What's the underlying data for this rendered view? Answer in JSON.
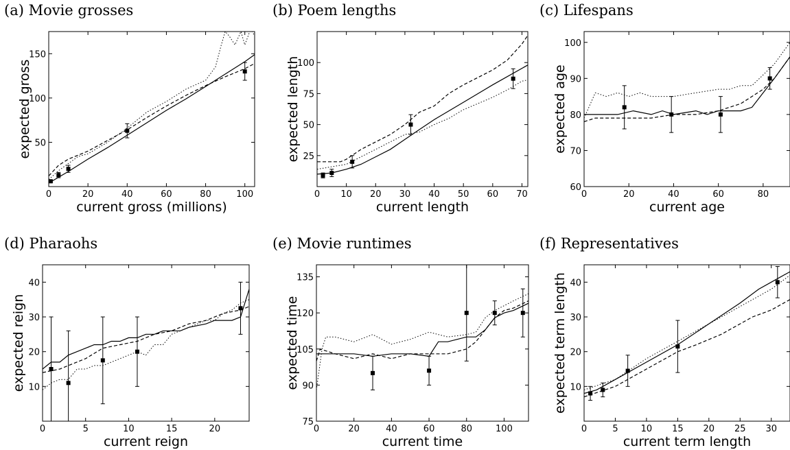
{
  "chart_data": [
    {
      "type": "line",
      "title": "(a) Movie grosses",
      "xlabel": "current gross (millions)",
      "ylabel": "expected gross",
      "xlim": [
        0,
        105
      ],
      "ylim": [
        0,
        175
      ],
      "xticks": [
        0,
        20,
        40,
        60,
        80,
        100
      ],
      "yticks": [
        50,
        100,
        150
      ],
      "series": [
        {
          "style": "solid",
          "x": [
            0,
            10,
            20,
            30,
            40,
            50,
            60,
            70,
            80,
            90,
            100,
            105
          ],
          "y": [
            4,
            17,
            31,
            44,
            58,
            72,
            86,
            99,
            113,
            127,
            141,
            149
          ]
        },
        {
          "style": "dashed",
          "x": [
            0,
            5,
            10,
            20,
            30,
            40,
            50,
            60,
            70,
            80,
            90,
            100,
            105
          ],
          "y": [
            12,
            24,
            31,
            40,
            52,
            64,
            78,
            91,
            103,
            114,
            124,
            133,
            139
          ]
        },
        {
          "style": "dotted",
          "x": [
            0,
            5,
            10,
            15,
            20,
            30,
            40,
            50,
            60,
            70,
            80,
            85,
            88,
            90,
            92,
            95,
            98,
            100,
            103,
            105
          ],
          "y": [
            8,
            18,
            26,
            34,
            37,
            50,
            66,
            84,
            96,
            110,
            120,
            135,
            160,
            175,
            170,
            160,
            175,
            160,
            178,
            170
          ]
        }
      ],
      "points": {
        "x": [
          1,
          5,
          10,
          40,
          100
        ],
        "y": [
          6,
          13,
          20,
          63,
          130
        ],
        "err": [
          1,
          3,
          4,
          8,
          10
        ]
      }
    },
    {
      "type": "line",
      "title": "(b) Poem lengths",
      "xlabel": "current length",
      "ylabel": "expected length",
      "xlim": [
        0,
        72
      ],
      "ylim": [
        0,
        125
      ],
      "xticks": [
        0,
        10,
        20,
        30,
        40,
        50,
        60,
        70
      ],
      "yticks": [
        25,
        50,
        75,
        100
      ],
      "series": [
        {
          "style": "solid",
          "x": [
            0,
            5,
            10,
            15,
            20,
            25,
            30,
            35,
            40,
            50,
            60,
            72
          ],
          "y": [
            10,
            11,
            14,
            18,
            24,
            30,
            38,
            46,
            54,
            68,
            82,
            98
          ]
        },
        {
          "style": "dashed",
          "x": [
            0,
            8,
            10,
            15,
            20,
            25,
            30,
            35,
            40,
            45,
            50,
            55,
            60,
            65,
            70,
            72
          ],
          "y": [
            20,
            20,
            22,
            30,
            36,
            42,
            50,
            60,
            65,
            75,
            82,
            88,
            94,
            102,
            115,
            122
          ]
        },
        {
          "style": "dotted",
          "x": [
            0,
            10,
            15,
            20,
            25,
            30,
            35,
            40,
            45,
            50,
            55,
            60,
            65,
            70,
            72
          ],
          "y": [
            14,
            18,
            24,
            30,
            36,
            42,
            44,
            50,
            55,
            62,
            67,
            72,
            78,
            85,
            86
          ]
        }
      ],
      "points": {
        "x": [
          2,
          5,
          12,
          32,
          67
        ],
        "y": [
          9,
          11,
          20,
          50,
          87
        ],
        "err": [
          2,
          3,
          5,
          8,
          8
        ]
      }
    },
    {
      "type": "line",
      "title": "(c) Lifespans",
      "xlabel": "current age",
      "ylabel": "expected age",
      "xlim": [
        0,
        92
      ],
      "ylim": [
        60,
        103
      ],
      "xticks": [
        0,
        20,
        40,
        60,
        80
      ],
      "yticks": [
        60,
        70,
        80,
        90,
        100
      ],
      "series": [
        {
          "style": "solid",
          "x": [
            0,
            15,
            22,
            30,
            35,
            40,
            50,
            55,
            60,
            65,
            70,
            75,
            80,
            85,
            92
          ],
          "y": [
            80,
            80,
            81,
            80,
            81,
            80,
            81,
            80,
            81,
            81,
            81,
            82,
            86,
            90,
            96
          ]
        },
        {
          "style": "dashed",
          "x": [
            0,
            5,
            10,
            20,
            30,
            40,
            50,
            60,
            70,
            75,
            80,
            85,
            92
          ],
          "y": [
            78,
            79,
            79,
            79,
            79,
            80,
            80,
            81,
            83,
            85,
            87,
            90,
            96
          ]
        },
        {
          "style": "dotted",
          "x": [
            0,
            5,
            10,
            15,
            20,
            25,
            30,
            40,
            50,
            60,
            65,
            70,
            75,
            80,
            85,
            92
          ],
          "y": [
            79,
            86,
            85,
            86,
            85,
            86,
            85,
            85,
            86,
            87,
            87,
            88,
            88,
            91,
            94,
            100
          ]
        }
      ],
      "points": {
        "x": [
          18,
          39,
          61,
          83
        ],
        "y": [
          82,
          80,
          80,
          90
        ],
        "err": [
          6,
          5,
          5,
          3
        ]
      }
    },
    {
      "type": "line",
      "title": "(d) Pharaohs",
      "xlabel": "current reign",
      "ylabel": "expected reign",
      "xlim": [
        0,
        24
      ],
      "ylim": [
        0,
        45
      ],
      "xticks": [
        0,
        5,
        10,
        15,
        20
      ],
      "yticks": [
        10,
        20,
        30,
        40
      ],
      "series": [
        {
          "style": "solid",
          "x": [
            0,
            1,
            2,
            3,
            5,
            6,
            7,
            8,
            9,
            10,
            11,
            12,
            13,
            14,
            16,
            17,
            19,
            20,
            21,
            22,
            23,
            24
          ],
          "y": [
            15,
            17,
            17,
            19,
            21,
            22,
            22,
            23,
            23,
            24,
            24,
            25,
            25,
            26,
            26,
            27,
            28,
            29,
            29,
            29,
            30,
            38
          ]
        },
        {
          "style": "dashed",
          "x": [
            0,
            2,
            3,
            5,
            7,
            9,
            11,
            13,
            15,
            17,
            19,
            21,
            23,
            24
          ],
          "y": [
            14,
            15,
            16,
            18,
            21,
            22,
            23,
            25,
            26,
            28,
            29,
            31,
            32,
            33
          ]
        },
        {
          "style": "dotted",
          "x": [
            0,
            1,
            2,
            3,
            4,
            5,
            6,
            7,
            8,
            9,
            10,
            11,
            12,
            13,
            14,
            15,
            16,
            17,
            18,
            19,
            20,
            21,
            22,
            23,
            24
          ],
          "y": [
            9,
            11,
            12,
            12,
            15,
            15,
            16,
            16,
            17,
            18,
            19,
            20,
            19,
            22,
            22,
            25,
            26,
            27,
            28,
            29,
            29,
            31,
            32,
            34,
            35
          ]
        }
      ],
      "points": {
        "x": [
          1,
          3,
          7,
          11,
          23
        ],
        "y": [
          15,
          11,
          17.5,
          20,
          32.5
        ],
        "err": [
          15,
          15,
          12.5,
          10,
          7.5
        ]
      }
    },
    {
      "type": "line",
      "title": "(e) Movie runtimes",
      "xlabel": "current time",
      "ylabel": "expected time",
      "xlim": [
        0,
        113
      ],
      "ylim": [
        75,
        140
      ],
      "xticks": [
        0,
        20,
        40,
        60,
        80,
        100
      ],
      "yticks": [
        75,
        90,
        105,
        120,
        135
      ],
      "series": [
        {
          "style": "solid",
          "x": [
            0,
            3,
            20,
            30,
            40,
            50,
            60,
            65,
            70,
            80,
            85,
            90,
            95,
            100,
            105,
            113
          ],
          "y": [
            103,
            103,
            103,
            102,
            103,
            103,
            102,
            108,
            108,
            110,
            110,
            113,
            118,
            120,
            121,
            124
          ]
        },
        {
          "style": "dashed",
          "x": [
            0,
            2,
            10,
            20,
            30,
            40,
            50,
            60,
            70,
            80,
            85,
            90,
            95,
            100,
            105,
            113
          ],
          "y": [
            100,
            105,
            103,
            101,
            103,
            101,
            103,
            103,
            103,
            105,
            108,
            113,
            118,
            121,
            122,
            125
          ]
        },
        {
          "style": "dotted",
          "x": [
            0,
            3,
            5,
            10,
            20,
            30,
            40,
            50,
            60,
            70,
            80,
            85,
            90,
            95,
            100,
            105,
            113
          ],
          "y": [
            88,
            105,
            110,
            110,
            108,
            111,
            107,
            109,
            112,
            110,
            111,
            112,
            118,
            121,
            123,
            125,
            128
          ]
        }
      ],
      "points": {
        "x": [
          30,
          60,
          80,
          95,
          110
        ],
        "y": [
          95,
          96,
          120,
          120,
          120
        ],
        "err": [
          7,
          6,
          20,
          5,
          10
        ]
      }
    },
    {
      "type": "line",
      "title": "(f) Representatives",
      "xlabel": "current term length",
      "ylabel": "expected term length",
      "xlim": [
        0,
        33
      ],
      "ylim": [
        0,
        45
      ],
      "xticks": [
        0,
        5,
        10,
        15,
        20,
        25,
        30
      ],
      "yticks": [
        10,
        20,
        30,
        40
      ],
      "series": [
        {
          "style": "solid",
          "x": [
            0,
            2,
            5,
            10,
            15,
            20,
            25,
            28,
            30,
            33
          ],
          "y": [
            8,
            9,
            12,
            17,
            22,
            28,
            34,
            38,
            40,
            43
          ]
        },
        {
          "style": "dashed",
          "x": [
            0,
            5,
            8,
            10,
            15,
            18,
            22,
            25,
            27,
            30,
            33
          ],
          "y": [
            7,
            10,
            13,
            15,
            20,
            22,
            25,
            28,
            30,
            32,
            35
          ]
        },
        {
          "style": "dotted",
          "x": [
            0,
            5,
            10,
            15,
            20,
            25,
            30,
            33
          ],
          "y": [
            9,
            12,
            18,
            23,
            28,
            33,
            38,
            42
          ]
        }
      ],
      "points": {
        "x": [
          1,
          3,
          7,
          15,
          31
        ],
        "y": [
          8,
          9,
          14.5,
          21.5,
          40
        ],
        "err": [
          2,
          2,
          4.5,
          7.5,
          4.5
        ]
      }
    }
  ]
}
